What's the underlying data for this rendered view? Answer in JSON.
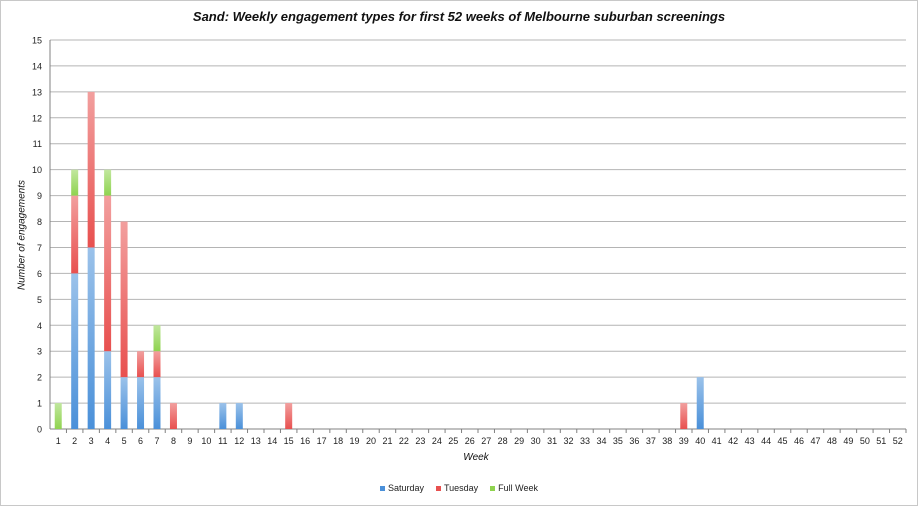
{
  "chart_data": {
    "type": "bar",
    "stacked": true,
    "title": "Sand: Weekly engagement types for first 52 weeks of Melbourne suburban screenings",
    "xlabel": "Week",
    "ylabel": "Number of engagements",
    "ylim": [
      0,
      15
    ],
    "yticks": [
      0,
      1,
      2,
      3,
      4,
      5,
      6,
      7,
      8,
      9,
      10,
      11,
      12,
      13,
      14,
      15
    ],
    "grid": true,
    "legend_position": "bottom",
    "categories": [
      "1",
      "2",
      "3",
      "4",
      "5",
      "6",
      "7",
      "8",
      "9",
      "10",
      "11",
      "12",
      "13",
      "14",
      "15",
      "16",
      "17",
      "18",
      "19",
      "20",
      "21",
      "22",
      "23",
      "24",
      "25",
      "26",
      "27",
      "28",
      "29",
      "30",
      "31",
      "32",
      "33",
      "34",
      "35",
      "36",
      "37",
      "38",
      "39",
      "40",
      "41",
      "42",
      "43",
      "44",
      "45",
      "46",
      "47",
      "48",
      "49",
      "50",
      "51",
      "52"
    ],
    "series": [
      {
        "name": "Saturday",
        "color": "#4a90d9",
        "values": [
          0,
          6,
          7,
          3,
          2,
          2,
          2,
          0,
          0,
          0,
          1,
          1,
          0,
          0,
          0,
          0,
          0,
          0,
          0,
          0,
          0,
          0,
          0,
          0,
          0,
          0,
          0,
          0,
          0,
          0,
          0,
          0,
          0,
          0,
          0,
          0,
          0,
          0,
          0,
          2,
          0,
          0,
          0,
          0,
          0,
          0,
          0,
          0,
          0,
          0,
          0,
          0
        ]
      },
      {
        "name": "Tuesday",
        "color": "#e8504f",
        "values": [
          0,
          3,
          6,
          6,
          6,
          1,
          1,
          1,
          0,
          0,
          0,
          0,
          0,
          0,
          1,
          0,
          0,
          0,
          0,
          0,
          0,
          0,
          0,
          0,
          0,
          0,
          0,
          0,
          0,
          0,
          0,
          0,
          0,
          0,
          0,
          0,
          0,
          0,
          1,
          0,
          0,
          0,
          0,
          0,
          0,
          0,
          0,
          0,
          0,
          0,
          0,
          0
        ]
      },
      {
        "name": "Full Week",
        "color": "#8fd34f",
        "values": [
          1,
          1,
          0,
          1,
          0,
          0,
          1,
          0,
          0,
          0,
          0,
          0,
          0,
          0,
          0,
          0,
          0,
          0,
          0,
          0,
          0,
          0,
          0,
          0,
          0,
          0,
          0,
          0,
          0,
          0,
          0,
          0,
          0,
          0,
          0,
          0,
          0,
          0,
          0,
          0,
          0,
          0,
          0,
          0,
          0,
          0,
          0,
          0,
          0,
          0,
          0,
          0
        ]
      }
    ]
  }
}
